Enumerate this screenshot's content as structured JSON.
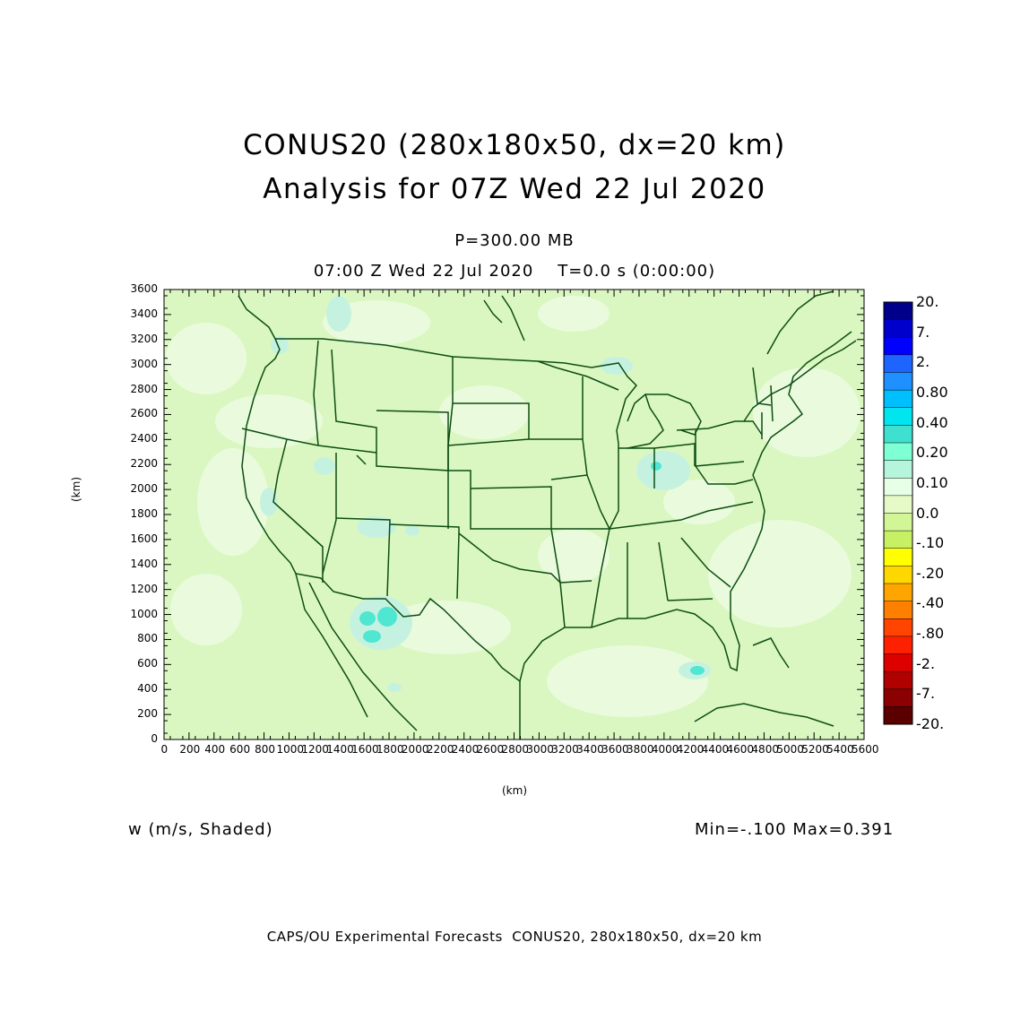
{
  "title": {
    "line1": "CONUS20 (280x180x50, dx=20 km)",
    "line2": "Analysis for 07Z Wed 22 Jul 2020"
  },
  "subtitle": {
    "level": "P=300.00 MB",
    "time": "07:00 Z Wed 22 Jul 2020    T=0.0 s (0:00:00)"
  },
  "axes": {
    "x_label": "(km)",
    "y_label": "(km)",
    "x_ticks": [
      "0",
      "200",
      "400",
      "600",
      "800",
      "1000",
      "1200",
      "1400",
      "1600",
      "1800",
      "2000",
      "2200",
      "2400",
      "2600",
      "2800",
      "3000",
      "3200",
      "3400",
      "3600",
      "3800",
      "4000",
      "4200",
      "4400",
      "4600",
      "4800",
      "5000",
      "5200",
      "5400",
      "5600"
    ],
    "y_ticks": [
      "0",
      "200",
      "400",
      "600",
      "800",
      "1000",
      "1200",
      "1400",
      "1600",
      "1800",
      "2000",
      "2200",
      "2400",
      "2600",
      "2800",
      "3000",
      "3200",
      "3400",
      "3600"
    ],
    "x_range": [
      0,
      5600
    ],
    "y_range": [
      0,
      3600
    ]
  },
  "colorbar": {
    "labels": [
      "20.",
      "7.",
      "2.",
      "0.80",
      "0.40",
      "0.20",
      "0.10",
      "0.0",
      "-.10",
      "-.20",
      "-.40",
      "-.80",
      "-2.",
      "-7.",
      "-20."
    ],
    "colors": [
      "#00008b",
      "#0000cd",
      "#0000ff",
      "#1e64ff",
      "#1e90ff",
      "#00bfff",
      "#00e5ee",
      "#40e0d0",
      "#7fffd4",
      "#b4f5dc",
      "#e6ffe6",
      "#e6fac8",
      "#d2f596",
      "#c8f064",
      "#ffff00",
      "#ffd700",
      "#ffa500",
      "#ff7f00",
      "#ff4500",
      "#ff2000",
      "#dd0000",
      "#b00000",
      "#8b0000",
      "#5a0000"
    ]
  },
  "field": {
    "variable": "w (m/s, Shaded)",
    "minmax": "Min=-.100 Max=0.391",
    "background_color": "#daf7c2",
    "lighter_color": "#e9fbdc",
    "positive_color": "#c5f2e0",
    "strong_color": "#4fe6d2",
    "boundary_color": "#0d4d12"
  },
  "footer": "CAPS/OU Experimental Forecasts  CONUS20, 280x180x50, dx=20 km"
}
